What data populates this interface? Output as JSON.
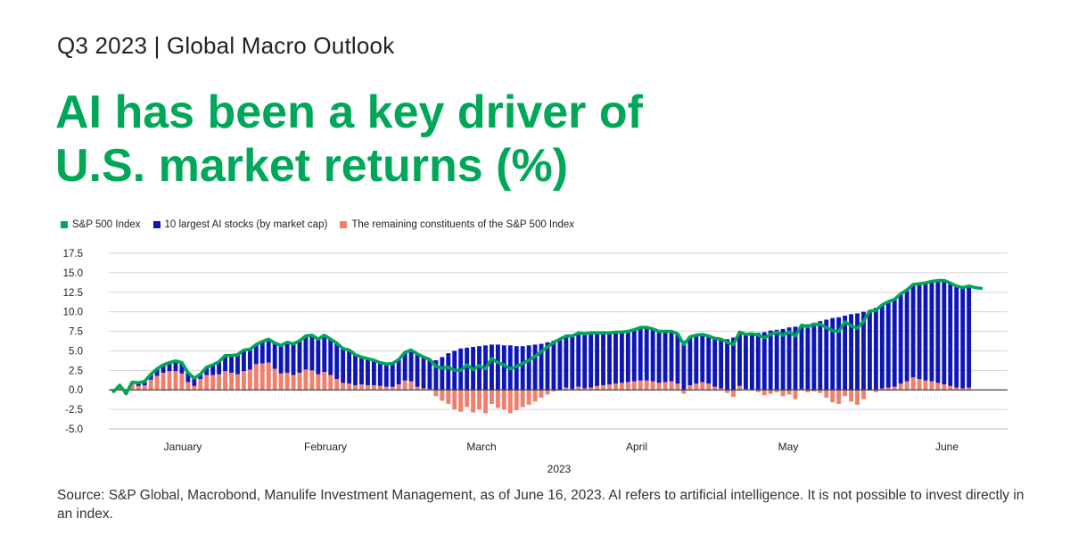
{
  "header": {
    "kicker": "Q3 2023 | Global Macro Outlook",
    "title_line1": "AI has been a key driver of",
    "title_line2": "U.S. market returns (%)"
  },
  "legend": [
    {
      "label": "S&P 500 Index",
      "color": "#00a758"
    },
    {
      "label": "10 largest AI stocks (by market cap)",
      "color": "#0f16b8"
    },
    {
      "label": "The remaining constituents of the S&P 500 Index",
      "color": "#f07f6e"
    }
  ],
  "chart_data": {
    "type": "bar",
    "xlabel": "2023",
    "ylabel": "",
    "ylim": [
      -5,
      17.5
    ],
    "yticks": [
      17.5,
      15.0,
      12.5,
      10.0,
      7.5,
      5.0,
      2.5,
      0.0,
      -2.5,
      -5.0
    ],
    "month_labels": [
      "January",
      "February",
      "March",
      "April",
      "May",
      "June"
    ],
    "grid": true,
    "legend_position": "top-left",
    "series": [
      {
        "name": "10 largest AI stocks (by market cap)",
        "kind": "stacked-bar",
        "values": [
          0.1,
          0.2,
          0.1,
          0.0,
          0.4,
          0.5,
          0.7,
          0.9,
          1.0,
          1.1,
          1.3,
          1.4,
          1.2,
          1.0,
          0.6,
          1.0,
          1.3,
          1.6,
          2.0,
          2.2,
          2.5,
          2.7,
          2.6,
          2.5,
          2.8,
          3.0,
          3.3,
          3.6,
          3.9,
          4.0,
          4.1,
          4.3,
          4.5,
          4.5,
          4.7,
          4.6,
          4.6,
          4.4,
          4.3,
          3.9,
          3.5,
          3.4,
          3.2,
          3.0,
          2.9,
          3.0,
          3.2,
          3.6,
          4.0,
          4.2,
          4.0,
          3.8,
          3.8,
          4.2,
          4.7,
          5.0,
          5.3,
          5.4,
          5.5,
          5.6,
          5.7,
          5.8,
          5.8,
          5.7,
          5.7,
          5.6,
          5.6,
          5.7,
          5.8,
          5.9,
          6.1,
          6.3,
          6.5,
          6.6,
          6.8,
          6.9,
          7.0,
          7.0,
          6.8,
          6.7,
          6.6,
          6.6,
          6.5,
          6.5,
          6.6,
          6.8,
          6.8,
          6.7,
          6.6,
          6.5,
          6.4,
          6.4,
          6.3,
          6.2,
          6.2,
          6.1,
          6.1,
          6.2,
          6.3,
          6.5,
          6.7,
          6.9,
          7.0,
          7.2,
          7.3,
          7.4,
          7.6,
          7.7,
          7.8,
          8.0,
          8.1,
          8.2,
          8.4,
          8.6,
          8.8,
          9.0,
          9.2,
          9.3,
          9.5,
          9.7,
          9.8,
          10.0,
          10.2,
          10.5,
          10.7,
          11.0,
          11.2,
          11.5,
          11.7,
          11.9,
          12.2,
          12.5,
          12.8,
          13.1,
          13.3,
          13.2,
          13.0,
          12.9,
          13.0,
          12.9,
          12.7
        ]
      },
      {
        "name": "The remaining constituents of the S&P 500 Index",
        "kind": "stacked-bar",
        "values": [
          -0.3,
          0.4,
          -0.6,
          1.0,
          0.5,
          0.6,
          1.3,
          1.8,
          2.2,
          2.4,
          2.4,
          2.1,
          1.0,
          0.5,
          1.4,
          1.9,
          1.9,
          2.0,
          2.4,
          2.2,
          2.0,
          2.4,
          2.6,
          3.3,
          3.4,
          3.5,
          2.7,
          2.1,
          2.2,
          1.9,
          2.2,
          2.6,
          2.5,
          2.0,
          2.3,
          1.9,
          1.4,
          0.9,
          0.8,
          0.6,
          0.7,
          0.6,
          0.6,
          0.5,
          0.4,
          0.4,
          0.7,
          1.2,
          1.1,
          0.4,
          0.2,
          0.1,
          -0.8,
          -1.4,
          -1.8,
          -2.5,
          -2.8,
          -2.2,
          -2.9,
          -2.5,
          -3.0,
          -1.8,
          -2.3,
          -2.5,
          -3.0,
          -2.6,
          -2.2,
          -1.9,
          -1.5,
          -1.0,
          -0.6,
          -0.2,
          0.0,
          0.3,
          0.1,
          0.4,
          0.2,
          0.3,
          0.5,
          0.6,
          0.7,
          0.8,
          0.9,
          1.0,
          1.1,
          1.2,
          1.2,
          1.1,
          0.9,
          1.0,
          1.1,
          0.8,
          -0.5,
          0.6,
          0.8,
          1.0,
          0.8,
          0.4,
          0.2,
          -0.4,
          -0.9,
          0.5,
          0.1,
          0.0,
          -0.3,
          -0.7,
          -0.5,
          -0.3,
          -0.8,
          -0.6,
          -1.2,
          0.1,
          -0.3,
          -0.2,
          -0.4,
          -1.0,
          -1.6,
          -1.8,
          -0.8,
          -1.5,
          -1.9,
          -1.2,
          -0.1,
          -0.3,
          0.2,
          0.3,
          0.4,
          0.8,
          1.1,
          1.6,
          1.4,
          1.2,
          1.1,
          0.9,
          0.7,
          0.5,
          0.3,
          0.2,
          0.3
        ]
      },
      {
        "name": "S&P 500 Index",
        "kind": "line",
        "values": [
          -0.2,
          0.6,
          -0.5,
          1.0,
          0.9,
          1.1,
          2.0,
          2.7,
          3.2,
          3.5,
          3.7,
          3.5,
          2.2,
          1.5,
          2.0,
          2.9,
          3.2,
          3.6,
          4.4,
          4.4,
          4.5,
          5.1,
          5.2,
          5.8,
          6.2,
          6.5,
          6.0,
          5.7,
          6.1,
          5.9,
          6.3,
          6.9,
          7.0,
          6.5,
          7.0,
          6.5,
          6.0,
          5.3,
          5.1,
          4.5,
          4.2,
          4.0,
          3.8,
          3.5,
          3.3,
          3.4,
          3.9,
          4.8,
          5.1,
          4.6,
          4.2,
          3.9,
          3.0,
          2.8,
          2.9,
          2.5,
          2.5,
          3.2,
          2.6,
          3.1,
          2.7,
          4.0,
          3.5,
          3.2,
          2.7,
          3.0,
          3.4,
          3.8,
          4.3,
          4.9,
          5.5,
          6.1,
          6.5,
          6.9,
          6.9,
          7.3,
          7.2,
          7.3,
          7.3,
          7.3,
          7.3,
          7.4,
          7.4,
          7.5,
          7.7,
          8.0,
          8.0,
          7.8,
          7.5,
          7.5,
          7.5,
          7.2,
          5.8,
          6.8,
          7.0,
          7.1,
          6.9,
          6.6,
          6.5,
          6.1,
          5.8,
          7.4,
          7.1,
          7.2,
          7.0,
          6.7,
          7.1,
          7.4,
          7.0,
          7.4,
          6.9,
          8.3,
          8.1,
          8.4,
          8.4,
          8.0,
          7.6,
          7.5,
          8.7,
          8.2,
          7.9,
          8.8,
          10.1,
          10.2,
          10.9,
          11.3,
          11.6,
          12.3,
          12.8,
          13.5,
          13.6,
          13.7,
          13.9,
          14.0,
          14.0,
          13.7,
          13.3,
          13.1,
          13.3,
          13.1,
          13.0
        ]
      }
    ]
  },
  "source_text": "Source: S&P Global, Macrobond, Manulife Investment Management, as of June 16, 2023. AI refers to artificial intelligence. It is not possible to invest directly in an index."
}
